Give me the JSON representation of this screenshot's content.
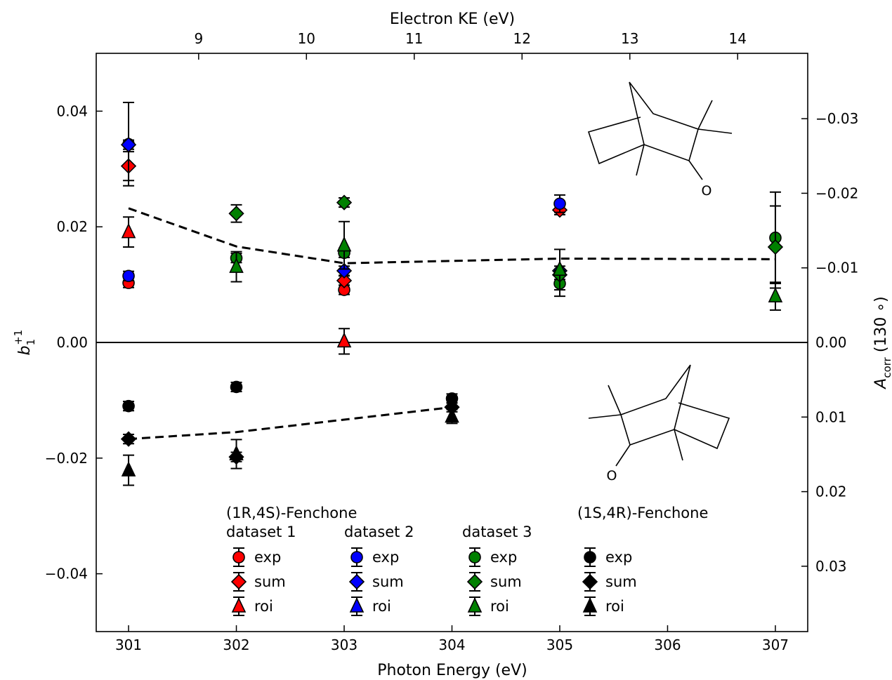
{
  "chart_data": {
    "type": "scatter",
    "xlabel": "Photon Energy (eV)",
    "ylabel_main": "b",
    "ylabel_sub": "1",
    "ylabel_sup": "+1",
    "top_xlabel": "Electron KE (eV)",
    "right_ylabel_main": "A",
    "right_ylabel_sub": "corr",
    "right_ylabel_tail": " (130 ∘)",
    "xlim": [
      300.7,
      307.3
    ],
    "ylim": [
      -0.05,
      0.05
    ],
    "x_ticks": [
      301,
      302,
      303,
      304,
      305,
      306,
      307
    ],
    "x_tick_labels": [
      "301",
      "302",
      "303",
      "304",
      "305",
      "306",
      "307"
    ],
    "y_ticks": [
      -0.04,
      -0.02,
      0.0,
      0.02,
      0.04
    ],
    "y_tick_labels": [
      "−0.04",
      "−0.02",
      "0.00",
      "0.02",
      "0.04"
    ],
    "top_ticks": [
      9,
      10,
      11,
      12,
      13,
      14
    ],
    "top_tick_labels": [
      "9",
      "10",
      "11",
      "12",
      "13",
      "14"
    ],
    "top_axis_offset_eV": 292.65,
    "right_ticks": [
      -0.03,
      -0.02,
      -0.01,
      0.0,
      0.01,
      0.02,
      0.03
    ],
    "right_tick_labels": [
      "−0.03",
      "−0.02",
      "−0.01",
      "0.00",
      "0.01",
      "0.02",
      "0.03"
    ],
    "right_axis_scale_per_b": -0.7752,
    "zero_line": true,
    "grid": false,
    "colors": {
      "dataset1": "#ff0000",
      "dataset2": "#0000ff",
      "dataset3": "#008000",
      "fenchone_1S4R": "#000000",
      "fit_line": "#000000"
    },
    "series": [
      {
        "name": "exp",
        "group": "dataset 1",
        "marker": "circle",
        "color": "#ff0000",
        "points": [
          {
            "x": 301,
            "y": 0.0103,
            "err": 0.0008
          },
          {
            "x": 303,
            "y": 0.0091,
            "err": 0.0008
          }
        ]
      },
      {
        "name": "sum",
        "group": "dataset 1",
        "marker": "diamond",
        "color": "#ff0000",
        "points": [
          {
            "x": 301,
            "y": 0.0305,
            "err": 0.0025
          },
          {
            "x": 303,
            "y": 0.0107,
            "err": 0.0008
          },
          {
            "x": 305,
            "y": 0.0229,
            "err": 0.0008
          }
        ]
      },
      {
        "name": "roi",
        "group": "dataset 1",
        "marker": "triangle",
        "color": "#ff0000",
        "points": [
          {
            "x": 301,
            "y": 0.0191,
            "err": 0.0026
          },
          {
            "x": 303,
            "y": 0.0002,
            "err": 0.0022
          }
        ]
      },
      {
        "name": "exp",
        "group": "dataset 2",
        "marker": "circle",
        "color": "#0000ff",
        "points": [
          {
            "x": 301,
            "y": 0.0343,
            "err": 0.0072
          },
          {
            "x": 301,
            "y": 0.0115,
            "err": 0.0008
          },
          {
            "x": 305,
            "y": 0.024,
            "err": 0.0015
          }
        ]
      },
      {
        "name": "sum",
        "group": "dataset 2",
        "marker": "diamond",
        "color": "#0000ff",
        "points": [
          {
            "x": 301,
            "y": 0.0342,
            "err": 0.0008
          },
          {
            "x": 303,
            "y": 0.0124,
            "err": 0.0008
          },
          {
            "x": 305,
            "y": 0.0124,
            "err": 0.0008
          }
        ]
      },
      {
        "name": "roi",
        "group": "dataset 2",
        "marker": "triangle",
        "color": "#0000ff",
        "points": []
      },
      {
        "name": "exp",
        "group": "dataset 3",
        "marker": "circle",
        "color": "#008000",
        "points": [
          {
            "x": 302,
            "y": 0.0146,
            "err": 0.0008
          },
          {
            "x": 303,
            "y": 0.0155,
            "err": 0.0008
          },
          {
            "x": 305,
            "y": 0.0102,
            "err": 0.0022
          },
          {
            "x": 307,
            "y": 0.0181,
            "err": 0.0079
          }
        ]
      },
      {
        "name": "sum",
        "group": "dataset 3",
        "marker": "diamond",
        "color": "#008000",
        "points": [
          {
            "x": 302,
            "y": 0.0223,
            "err": 0.0015
          },
          {
            "x": 303,
            "y": 0.0242,
            "err": 0.0008
          },
          {
            "x": 305,
            "y": 0.0117,
            "err": 0.0008
          },
          {
            "x": 307,
            "y": 0.0165,
            "err": 0.0071
          }
        ]
      },
      {
        "name": "roi",
        "group": "dataset 3",
        "marker": "triangle",
        "color": "#008000",
        "points": [
          {
            "x": 302,
            "y": 0.0131,
            "err": 0.0026
          },
          {
            "x": 303,
            "y": 0.0168,
            "err": 0.0041
          },
          {
            "x": 305,
            "y": 0.0126,
            "err": 0.0035
          },
          {
            "x": 307,
            "y": 0.008,
            "err": 0.0024
          }
        ]
      },
      {
        "name": "exp",
        "group": "(1S,4R)-Fenchone",
        "marker": "circle",
        "color": "#000000",
        "points": [
          {
            "x": 301,
            "y": -0.011,
            "err": 0.0008
          },
          {
            "x": 302,
            "y": -0.0077,
            "err": 0.0008
          },
          {
            "x": 304,
            "y": -0.0097,
            "err": 0.0008
          }
        ]
      },
      {
        "name": "sum",
        "group": "(1S,4R)-Fenchone",
        "marker": "diamond",
        "color": "#000000",
        "points": [
          {
            "x": 301,
            "y": -0.0167,
            "err": 0.0008
          },
          {
            "x": 302,
            "y": -0.0198,
            "err": 0.0008
          },
          {
            "x": 304,
            "y": -0.0112,
            "err": 0.0008
          }
        ]
      },
      {
        "name": "roi",
        "group": "(1S,4R)-Fenchone",
        "marker": "triangle",
        "color": "#000000",
        "points": [
          {
            "x": 301,
            "y": -0.0221,
            "err": 0.0026
          },
          {
            "x": 302,
            "y": -0.0193,
            "err": 0.0025
          },
          {
            "x": 304,
            "y": -0.0128,
            "err": 0.0012
          }
        ]
      }
    ],
    "fit_lines": [
      {
        "style": "dashed",
        "x": [
          301,
          302,
          303,
          305,
          307
        ],
        "y": [
          0.0232,
          0.0166,
          0.0137,
          0.0145,
          0.0144
        ]
      },
      {
        "style": "dashed",
        "x": [
          301,
          302,
          304
        ],
        "y": [
          -0.0167,
          -0.0155,
          -0.0112
        ]
      }
    ],
    "legend": {
      "location": "bottom-center",
      "group_title": "(1R,4S)-Fenchone",
      "other_title": "(1S,4R)-Fenchone",
      "columns": [
        {
          "header": "dataset 1",
          "color": "#ff0000"
        },
        {
          "header": "dataset 2",
          "color": "#0000ff"
        },
        {
          "header": "dataset 3",
          "color": "#008000"
        },
        {
          "header": "",
          "color": "#000000"
        }
      ],
      "rows": [
        {
          "marker": "circle",
          "label": "exp"
        },
        {
          "marker": "diamond",
          "label": "sum"
        },
        {
          "marker": "triangle",
          "label": "roi"
        }
      ]
    },
    "molecule_insets": [
      {
        "placement": "upper-right",
        "atom_label": "O"
      },
      {
        "placement": "lower-right",
        "atom_label": "O"
      }
    ]
  }
}
